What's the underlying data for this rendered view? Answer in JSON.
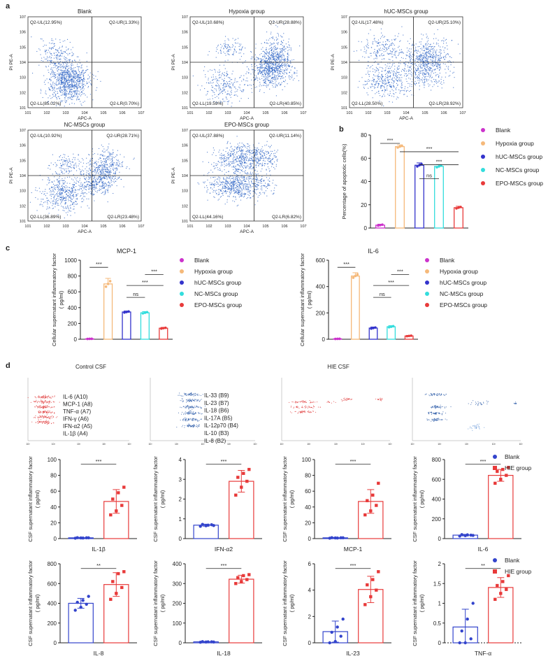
{
  "panel_labels": {
    "a": "a",
    "b": "b",
    "c": "c",
    "d": "d"
  },
  "flow_axes": {
    "xlabel": "APC-A",
    "ylabel": "PI PE-A",
    "ticks": [
      "10^1",
      "10^2",
      "10^3",
      "10^4",
      "10^5",
      "10^6",
      "10^7"
    ]
  },
  "chart_data": [
    {
      "type": "scatter",
      "id": "flow-blank",
      "title": "Blank",
      "quadrants": {
        "UL": "Q2-UL(12.95%)",
        "UR": "Q2-UR(1.33%)",
        "LL": "Q2-LL(85.02%)",
        "LR": "Q2-LR(0.70%)"
      }
    },
    {
      "type": "scatter",
      "id": "flow-hypoxia",
      "title": "Hypoxia group",
      "quadrants": {
        "UL": "Q2-UL(10.68%)",
        "UR": "Q2-UR(28.88%)",
        "LL": "Q2-LL(19.59%)",
        "LR": "Q2-LR(40.85%)"
      }
    },
    {
      "type": "scatter",
      "id": "flow-huc",
      "title": "hUC-MSCs group",
      "quadrants": {
        "UL": "Q2-UL(17.48%)",
        "UR": "Q2-UR(25.10%)",
        "LL": "Q2-LL(28.50%)",
        "LR": "Q2-LR(28.92%)"
      }
    },
    {
      "type": "scatter",
      "id": "flow-nc",
      "title": "NC-MSCs group",
      "quadrants": {
        "UL": "Q2-UL(10.92%)",
        "UR": "Q2-UR(28.71%)",
        "LL": "Q2-LL(36.89%)",
        "LR": "Q2-LR(23.48%)"
      }
    },
    {
      "type": "scatter",
      "id": "flow-epo",
      "title": "EPO-MSCs group",
      "quadrants": {
        "UL": "Q2-UL(37.88%)",
        "UR": "Q2-UR(11.14%)",
        "LL": "Q2-LL(44.16%)",
        "LR": "Q2-LR(6.82%)"
      }
    },
    {
      "type": "bar",
      "id": "apoptosis",
      "title": "",
      "ylabel": "Percentage of apoptotic cells(%)",
      "ylim": [
        0,
        80
      ],
      "yticks": [
        0,
        20,
        40,
        60,
        80
      ],
      "categories": [
        "Blank",
        "Hypoxia group",
        "hUC-MSCs group",
        "NC-MSCs group",
        "EPO-MSCs group"
      ],
      "values": [
        2.5,
        70,
        54,
        53,
        17.5
      ],
      "errors": [
        0.8,
        1.5,
        2,
        1.5,
        1.2
      ],
      "colors": [
        "#cc33cc",
        "#f5b97a",
        "#3333cc",
        "#33dddd",
        "#e83a3a"
      ],
      "sig": [
        {
          "a": 0,
          "b": 1,
          "t": "***"
        },
        {
          "a": 1,
          "b": 4,
          "t": "***"
        },
        {
          "a": 2,
          "b": 4,
          "t": "***"
        },
        {
          "a": 2,
          "b": 3,
          "t": "ns"
        }
      ]
    },
    {
      "type": "bar",
      "id": "mcp1",
      "title": "MCP-1",
      "ylabel": "Cellular supernatant inflammatory factor\n( pg/ml)",
      "ylim": [
        0,
        1000
      ],
      "yticks": [
        0,
        200,
        400,
        600,
        800,
        1000
      ],
      "categories": [
        "Blank",
        "Hypoxia group",
        "hUC-MSCs group",
        "NC-MSCs group",
        "EPO-MSCs group"
      ],
      "values": [
        5,
        700,
        345,
        335,
        140
      ],
      "errors": [
        2,
        70,
        12,
        15,
        10
      ],
      "colors": [
        "#cc33cc",
        "#f5b97a",
        "#3333cc",
        "#33dddd",
        "#e83a3a"
      ],
      "sig": [
        {
          "a": 0,
          "b": 1,
          "t": "***"
        },
        {
          "a": 3,
          "b": 4,
          "t": "***"
        },
        {
          "a": 2,
          "b": 4,
          "t": "***"
        },
        {
          "a": 2,
          "b": 3,
          "t": "ns"
        }
      ]
    },
    {
      "type": "bar",
      "id": "il6cell",
      "title": "IL-6",
      "ylabel": "Cellular supernatant inflammatory factor\n( pg/ml)",
      "ylim": [
        0,
        600
      ],
      "yticks": [
        0,
        200,
        400,
        600
      ],
      "categories": [
        "Blank",
        "Hypoxia group",
        "hUC-MSCs group",
        "NC-MSCs group",
        "EPO-MSCs group"
      ],
      "values": [
        3,
        480,
        85,
        95,
        25
      ],
      "errors": [
        1,
        25,
        8,
        8,
        4
      ],
      "colors": [
        "#cc33cc",
        "#f5b97a",
        "#3333cc",
        "#33dddd",
        "#e83a3a"
      ],
      "sig": [
        {
          "a": 0,
          "b": 1,
          "t": "***"
        },
        {
          "a": 3,
          "b": 4,
          "t": "***"
        },
        {
          "a": 2,
          "b": 4,
          "t": "***"
        },
        {
          "a": 2,
          "b": 3,
          "t": "ns"
        }
      ]
    },
    {
      "type": "bar",
      "id": "csf-il1b",
      "xlabel": "IL-1β",
      "ylim": [
        0,
        100
      ],
      "yticks": [
        0,
        20,
        40,
        60,
        80,
        100
      ],
      "categories": [
        "Blank",
        "HIE group"
      ],
      "values": [
        1,
        47
      ],
      "errors": [
        0.5,
        15
      ],
      "points": [
        [
          0.5,
          0.8,
          1,
          1.2,
          0.7,
          1
        ],
        [
          30,
          35,
          42,
          50,
          58,
          65
        ]
      ],
      "sig": "***"
    },
    {
      "type": "bar",
      "id": "csf-ifna2",
      "xlabel": "IFN-α2",
      "ylim": [
        0,
        4
      ],
      "yticks": [
        0,
        1,
        2,
        3,
        4
      ],
      "categories": [
        "Blank",
        "HIE group"
      ],
      "values": [
        0.68,
        2.9
      ],
      "errors": [
        0.05,
        0.55
      ],
      "points": [
        [
          0.62,
          0.65,
          0.7,
          0.72,
          0.68,
          0.66
        ],
        [
          2.2,
          2.6,
          2.9,
          3.1,
          3.3,
          3.5
        ]
      ],
      "sig": "***"
    },
    {
      "type": "bar",
      "id": "csf-mcp1",
      "xlabel": "MCP-1",
      "ylim": [
        0,
        100
      ],
      "yticks": [
        0,
        20,
        40,
        60,
        80,
        100
      ],
      "categories": [
        "Blank",
        "HIE group"
      ],
      "values": [
        1,
        47
      ],
      "errors": [
        0.5,
        15
      ],
      "points": [
        [
          0.5,
          0.8,
          1,
          1.2,
          0.7,
          1
        ],
        [
          30,
          35,
          42,
          48,
          55,
          70
        ]
      ],
      "sig": "***"
    },
    {
      "type": "bar",
      "id": "csf-il6",
      "xlabel": "IL-6",
      "ylim": [
        0,
        800
      ],
      "yticks": [
        0,
        200,
        400,
        600,
        800
      ],
      "categories": [
        "Blank",
        "HIE group"
      ],
      "values": [
        35,
        640
      ],
      "errors": [
        8,
        60
      ],
      "points": [
        [
          25,
          30,
          35,
          40,
          38,
          32
        ],
        [
          560,
          600,
          640,
          680,
          700,
          720
        ]
      ],
      "sig": "***"
    },
    {
      "type": "bar",
      "id": "csf-il8",
      "xlabel": "IL-8",
      "ylim": [
        0,
        800
      ],
      "yticks": [
        0,
        200,
        400,
        600,
        800
      ],
      "categories": [
        "Blank",
        "HIE group"
      ],
      "values": [
        400,
        590
      ],
      "errors": [
        50,
        120
      ],
      "points": [
        [
          330,
          360,
          390,
          410,
          430,
          470
        ],
        [
          440,
          500,
          560,
          620,
          700,
          720
        ]
      ],
      "sig": "**"
    },
    {
      "type": "bar",
      "id": "csf-il18",
      "xlabel": "IL-18",
      "ylim": [
        0,
        400
      ],
      "yticks": [
        0,
        100,
        200,
        300,
        400
      ],
      "categories": [
        "Blank",
        "HIE group"
      ],
      "values": [
        5,
        322
      ],
      "errors": [
        2,
        20
      ],
      "points": [
        [
          3,
          4,
          5,
          6,
          5,
          4
        ],
        [
          300,
          310,
          320,
          330,
          340,
          345
        ]
      ],
      "sig": "***"
    },
    {
      "type": "bar",
      "id": "csf-il23",
      "xlabel": "IL-23",
      "ylim": [
        0,
        6
      ],
      "yticks": [
        0,
        2,
        4,
        6
      ],
      "categories": [
        "Blank",
        "HIE group"
      ],
      "values": [
        0.85,
        4.05
      ],
      "errors": [
        0.8,
        1.0
      ],
      "points": [
        [
          0,
          0.1,
          0.5,
          0.8,
          1.2,
          1.8
        ],
        [
          2.9,
          3.5,
          4.0,
          4.4,
          4.8,
          5.4
        ]
      ],
      "sig": "***"
    },
    {
      "type": "bar",
      "id": "csf-tnfa",
      "xlabel": "TNF-α",
      "ylim": [
        0,
        2.0
      ],
      "yticks": [
        0,
        0.5,
        1.0,
        1.5,
        2.0
      ],
      "categories": [
        "Blank",
        "HIE group"
      ],
      "values": [
        0.4,
        1.4
      ],
      "errors": [
        0.45,
        0.25
      ],
      "points": [
        [
          0,
          0,
          0.1,
          0.3,
          0.6,
          1.0
        ],
        [
          1.1,
          1.25,
          1.35,
          1.45,
          1.55,
          1.7
        ]
      ],
      "sig": "**"
    }
  ],
  "legend_groups": [
    "Blank",
    "Hypoxia group",
    "hUC-MSCs group",
    "NC-MSCs group",
    "EPO-MSCs group"
  ],
  "legend_csf": [
    "Blank",
    "HIE group"
  ],
  "csf_ylabel": "CSF supernatant inflammatory factor\n( pg/ml)",
  "array_titles": {
    "control": "Control CSF",
    "hie": "HIE CSF"
  },
  "array_labels_left": [
    "IL-6 (A10)",
    "MCP-1 (A8)",
    "TNF-α (A7)",
    "IFN-γ (A6)",
    "IFN-α2 (A5)",
    "IL-1β (A4)"
  ],
  "array_labels_right": [
    "IL-33 (B9)",
    "IL-23 (B7)",
    "IL-18 (B6)",
    "IL-17A (B5)",
    "IL-12p70 (B4)",
    "IL-10 (B3)",
    "IL-8 (B2)"
  ]
}
